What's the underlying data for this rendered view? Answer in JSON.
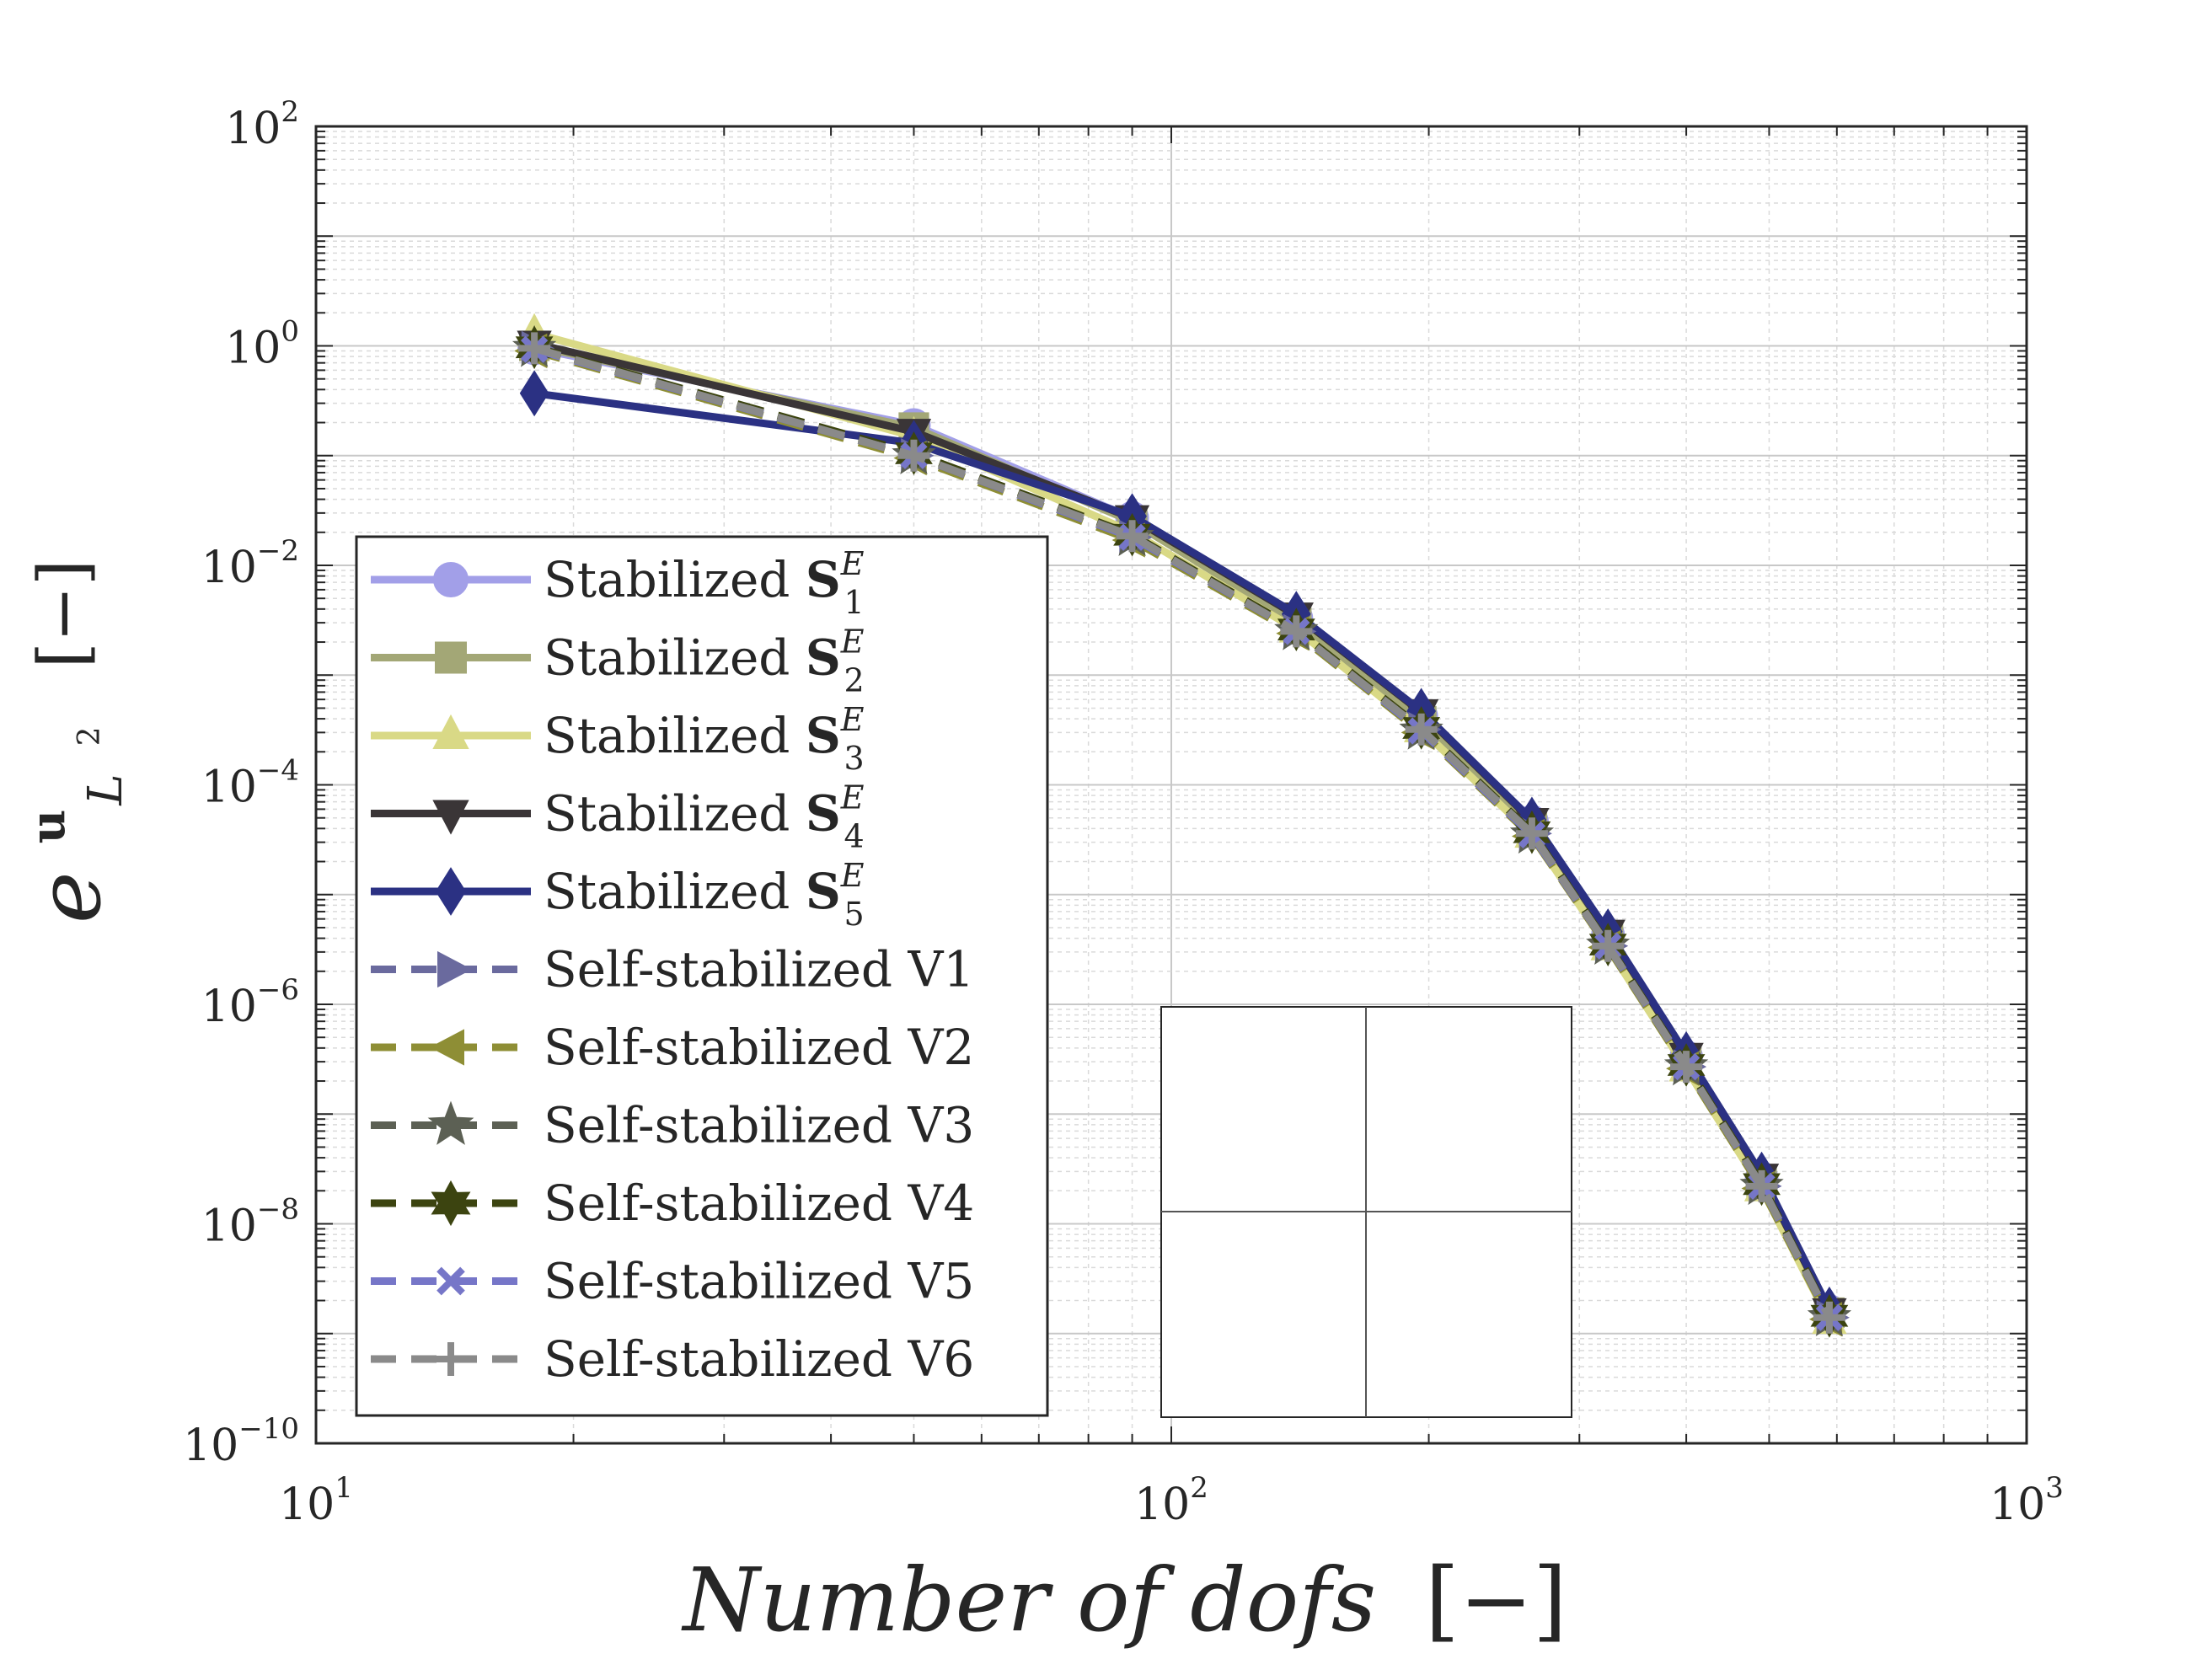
{
  "chart_data": {
    "type": "line",
    "xscale": "log",
    "yscale": "log",
    "xlim": [
      10,
      1000
    ],
    "ylim": [
      1e-10,
      100
    ],
    "grid": true,
    "legend_location": "left",
    "xlabel": "Number of dofs",
    "xlabel_unit": "[−]",
    "ylabel_main": "e",
    "ylabel_sup": "u",
    "ylabel_sub": "L",
    "ylabel_sub_sup": "2",
    "ylabel_unit": "[−]",
    "x_ticks": [
      {
        "value": 10,
        "base": "10",
        "exp": "1"
      },
      {
        "value": 100,
        "base": "10",
        "exp": "2"
      },
      {
        "value": 1000,
        "base": "10",
        "exp": "3"
      }
    ],
    "y_ticks": [
      {
        "value": 100,
        "base": "10",
        "exp": "2"
      },
      {
        "value": 1,
        "base": "10",
        "exp": "0"
      },
      {
        "value": 0.01,
        "base": "10",
        "exp": "−2"
      },
      {
        "value": 0.0001,
        "base": "10",
        "exp": "−4"
      },
      {
        "value": 1e-06,
        "base": "10",
        "exp": "−6"
      },
      {
        "value": 1e-08,
        "base": "10",
        "exp": "−8"
      },
      {
        "value": 1e-10,
        "base": "10",
        "exp": "−10"
      }
    ],
    "x": [
      18,
      50,
      90,
      140,
      196,
      264,
      324,
      400,
      490,
      588
    ],
    "series": [
      {
        "name": "Stabilized S",
        "sub": "1",
        "sup": "E",
        "color": "#a29fe8",
        "dash": false,
        "marker": "circle",
        "values": [
          0.95,
          0.19,
          0.027,
          0.0033,
          0.00042,
          4.6e-05,
          4.3e-06,
          3.3e-07,
          2.6e-08,
          1.6e-09
        ]
      },
      {
        "name": "Stabilized S",
        "sub": "2",
        "sup": "E",
        "color": "#a3a776",
        "dash": false,
        "marker": "square",
        "values": [
          1.0,
          0.18,
          0.025,
          0.003,
          0.00038,
          4.2e-05,
          4e-06,
          3.1e-07,
          2.4e-08,
          1.55e-09
        ]
      },
      {
        "name": "Stabilized S",
        "sub": "3",
        "sup": "E",
        "color": "#d9d986",
        "dash": false,
        "marker": "triangle-up",
        "values": [
          1.3,
          0.15,
          0.02,
          0.0026,
          0.00032,
          3.5e-05,
          3.3e-06,
          2.6e-07,
          2.1e-08,
          1.3e-09
        ]
      },
      {
        "name": "Stabilized S",
        "sub": "4",
        "sup": "E",
        "color": "#3a3537",
        "dash": false,
        "marker": "triangle-down",
        "values": [
          1.05,
          0.165,
          0.027,
          0.0035,
          0.00046,
          4.7e-05,
          4.5e-06,
          3.4e-07,
          2.7e-08,
          1.6e-09
        ]
      },
      {
        "name": "Stabilized S",
        "sub": "5",
        "sup": "E",
        "color": "#2b3183",
        "dash": false,
        "marker": "diamond",
        "values": [
          0.37,
          0.13,
          0.028,
          0.0036,
          0.00047,
          4.8e-05,
          4.6e-06,
          3.5e-07,
          2.8e-08,
          1.65e-09
        ]
      },
      {
        "name": "Self-stabilized V1",
        "color": "#6a6a9e",
        "dash": true,
        "marker": "triangle-right",
        "values": [
          0.95,
          0.1,
          0.018,
          0.0025,
          0.00032,
          3.6e-05,
          3.4e-06,
          2.7e-07,
          2.2e-08,
          1.4e-09
        ]
      },
      {
        "name": "Self-stabilized V2",
        "color": "#8e8e35",
        "dash": true,
        "marker": "triangle-left",
        "values": [
          0.9,
          0.095,
          0.017,
          0.0024,
          0.0003,
          3.4e-05,
          3.3e-06,
          2.6e-07,
          2.1e-08,
          1.35e-09
        ]
      },
      {
        "name": "Self-stabilized V3",
        "color": "#5c6054",
        "dash": true,
        "marker": "star",
        "values": [
          0.95,
          0.1,
          0.018,
          0.0025,
          0.00031,
          3.5e-05,
          3.4e-06,
          2.7e-07,
          2.2e-08,
          1.4e-09
        ]
      },
      {
        "name": "Self-stabilized V4",
        "color": "#3c4410",
        "dash": true,
        "marker": "hexagram",
        "values": [
          0.97,
          0.105,
          0.019,
          0.0026,
          0.00033,
          3.7e-05,
          3.5e-06,
          2.8e-07,
          2.3e-08,
          1.45e-09
        ]
      },
      {
        "name": "Self-stabilized V5",
        "color": "#7676c8",
        "dash": true,
        "marker": "x",
        "values": [
          0.93,
          0.1,
          0.018,
          0.0025,
          0.00031,
          3.5e-05,
          3.4e-06,
          2.7e-07,
          2.2e-08,
          1.4e-09
        ]
      },
      {
        "name": "Self-stabilized V6",
        "color": "#8a8a8a",
        "dash": true,
        "marker": "plus",
        "values": [
          0.95,
          0.1,
          0.0185,
          0.0025,
          0.00032,
          3.6e-05,
          3.4e-06,
          2.7e-07,
          2.2e-08,
          1.4e-09
        ]
      }
    ]
  }
}
